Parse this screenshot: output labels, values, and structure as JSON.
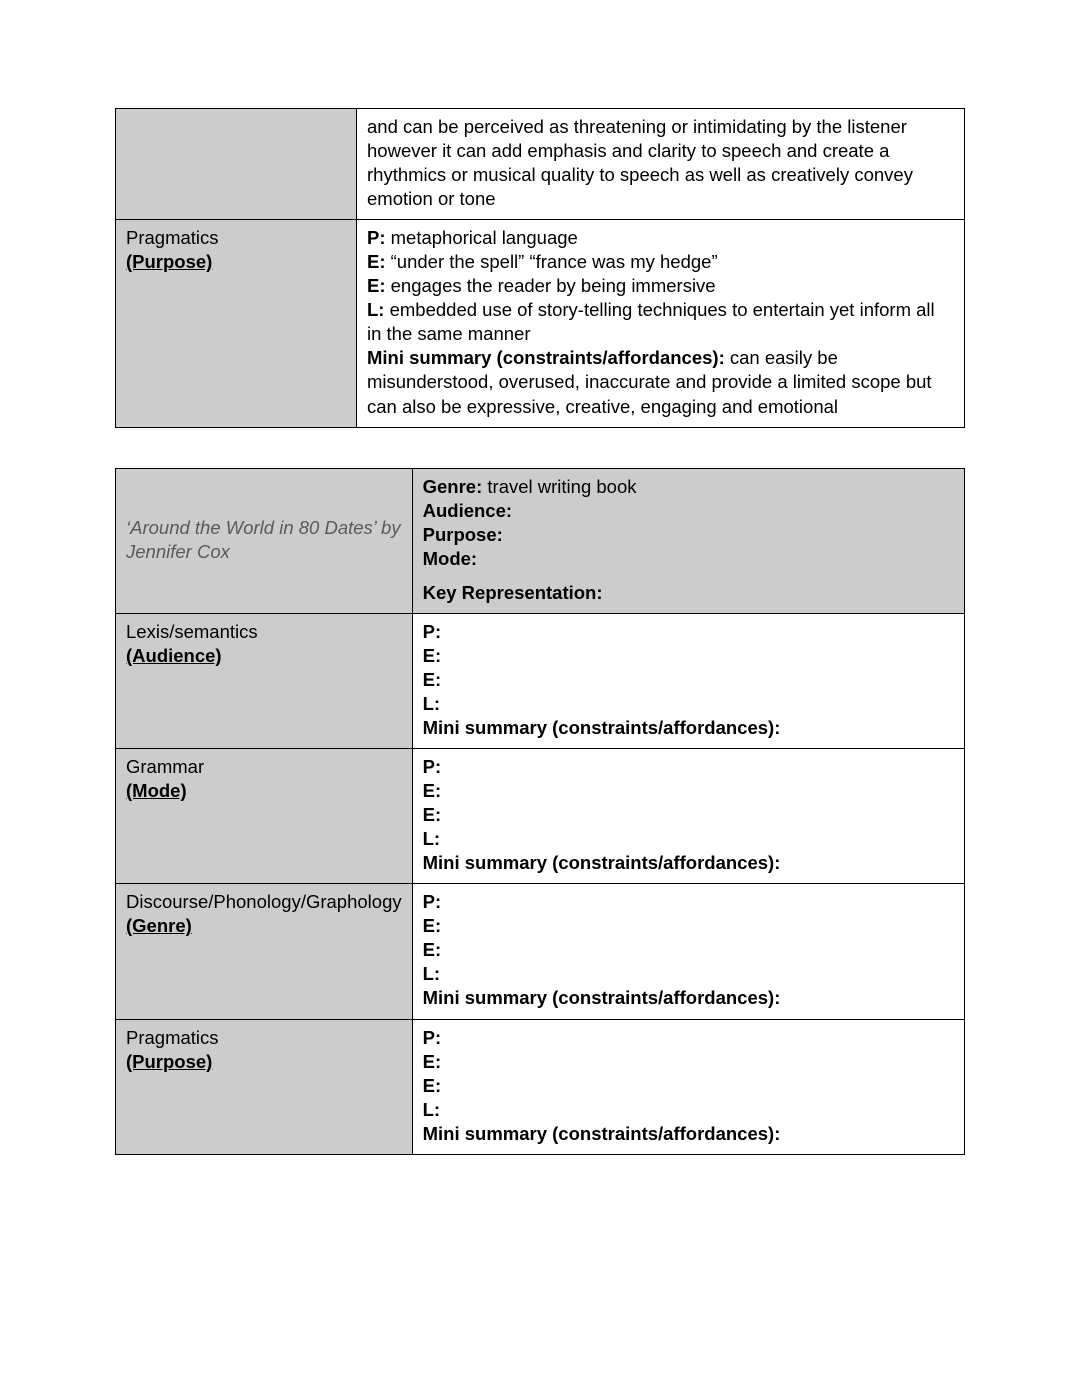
{
  "table1": {
    "row0_label": "",
    "row0_content": "and can be perceived as threatening or intimidating by the listener however it can add emphasis and clarity to speech and create a rhythmics or musical quality to speech as well as creatively convey emotion or tone",
    "row1_label_line1": "Pragmatics",
    "row1_label_line2": "(Purpose)",
    "row1_p_label": "P:",
    "row1_p_text": " metaphorical language",
    "row1_e1_label": "E:",
    "row1_e1_text": " “under the spell” “france was my hedge”",
    "row1_e2_label": "E:",
    "row1_e2_text": " engages the reader by being immersive",
    "row1_l_label": "L:",
    "row1_l_text": " embedded use of story-telling techniques to entertain yet inform all in the same manner",
    "row1_sum_label": "Mini summary (constraints/affordances):",
    "row1_sum_text": " can easily be misunderstood, overused, inaccurate and provide a limited scope but can also be expressive, creative, engaging and emotional"
  },
  "table2": {
    "title": "‘Around the World in 80 Dates’ by Jennifer Cox",
    "hdr_genre_label": "Genre:",
    "hdr_genre_text": " travel writing book",
    "hdr_audience": "Audience:",
    "hdr_purpose": "Purpose:",
    "hdr_mode": "Mode:",
    "hdr_keyrep": "Key Representation:",
    "rows": [
      {
        "label_line1": "Lexis/semantics",
        "label_line2": "(Audience)"
      },
      {
        "label_line1": "Grammar",
        "label_line2": "(Mode)"
      },
      {
        "label_line1": "Discourse/Phonology/Graphology",
        "label_line2": "(Genre)"
      },
      {
        "label_line1": "Pragmatics",
        "label_line2": "(Purpose)"
      }
    ],
    "peel": {
      "p": "P:",
      "e1": "E:",
      "e2": "E:",
      "l": "L:",
      "sum": "Mini summary (constraints/affordances):"
    }
  },
  "colors": {
    "label_bg": "#cccccc",
    "content_bg": "#ffffff",
    "border": "#000000",
    "title_gray": "#5a5a5a"
  }
}
